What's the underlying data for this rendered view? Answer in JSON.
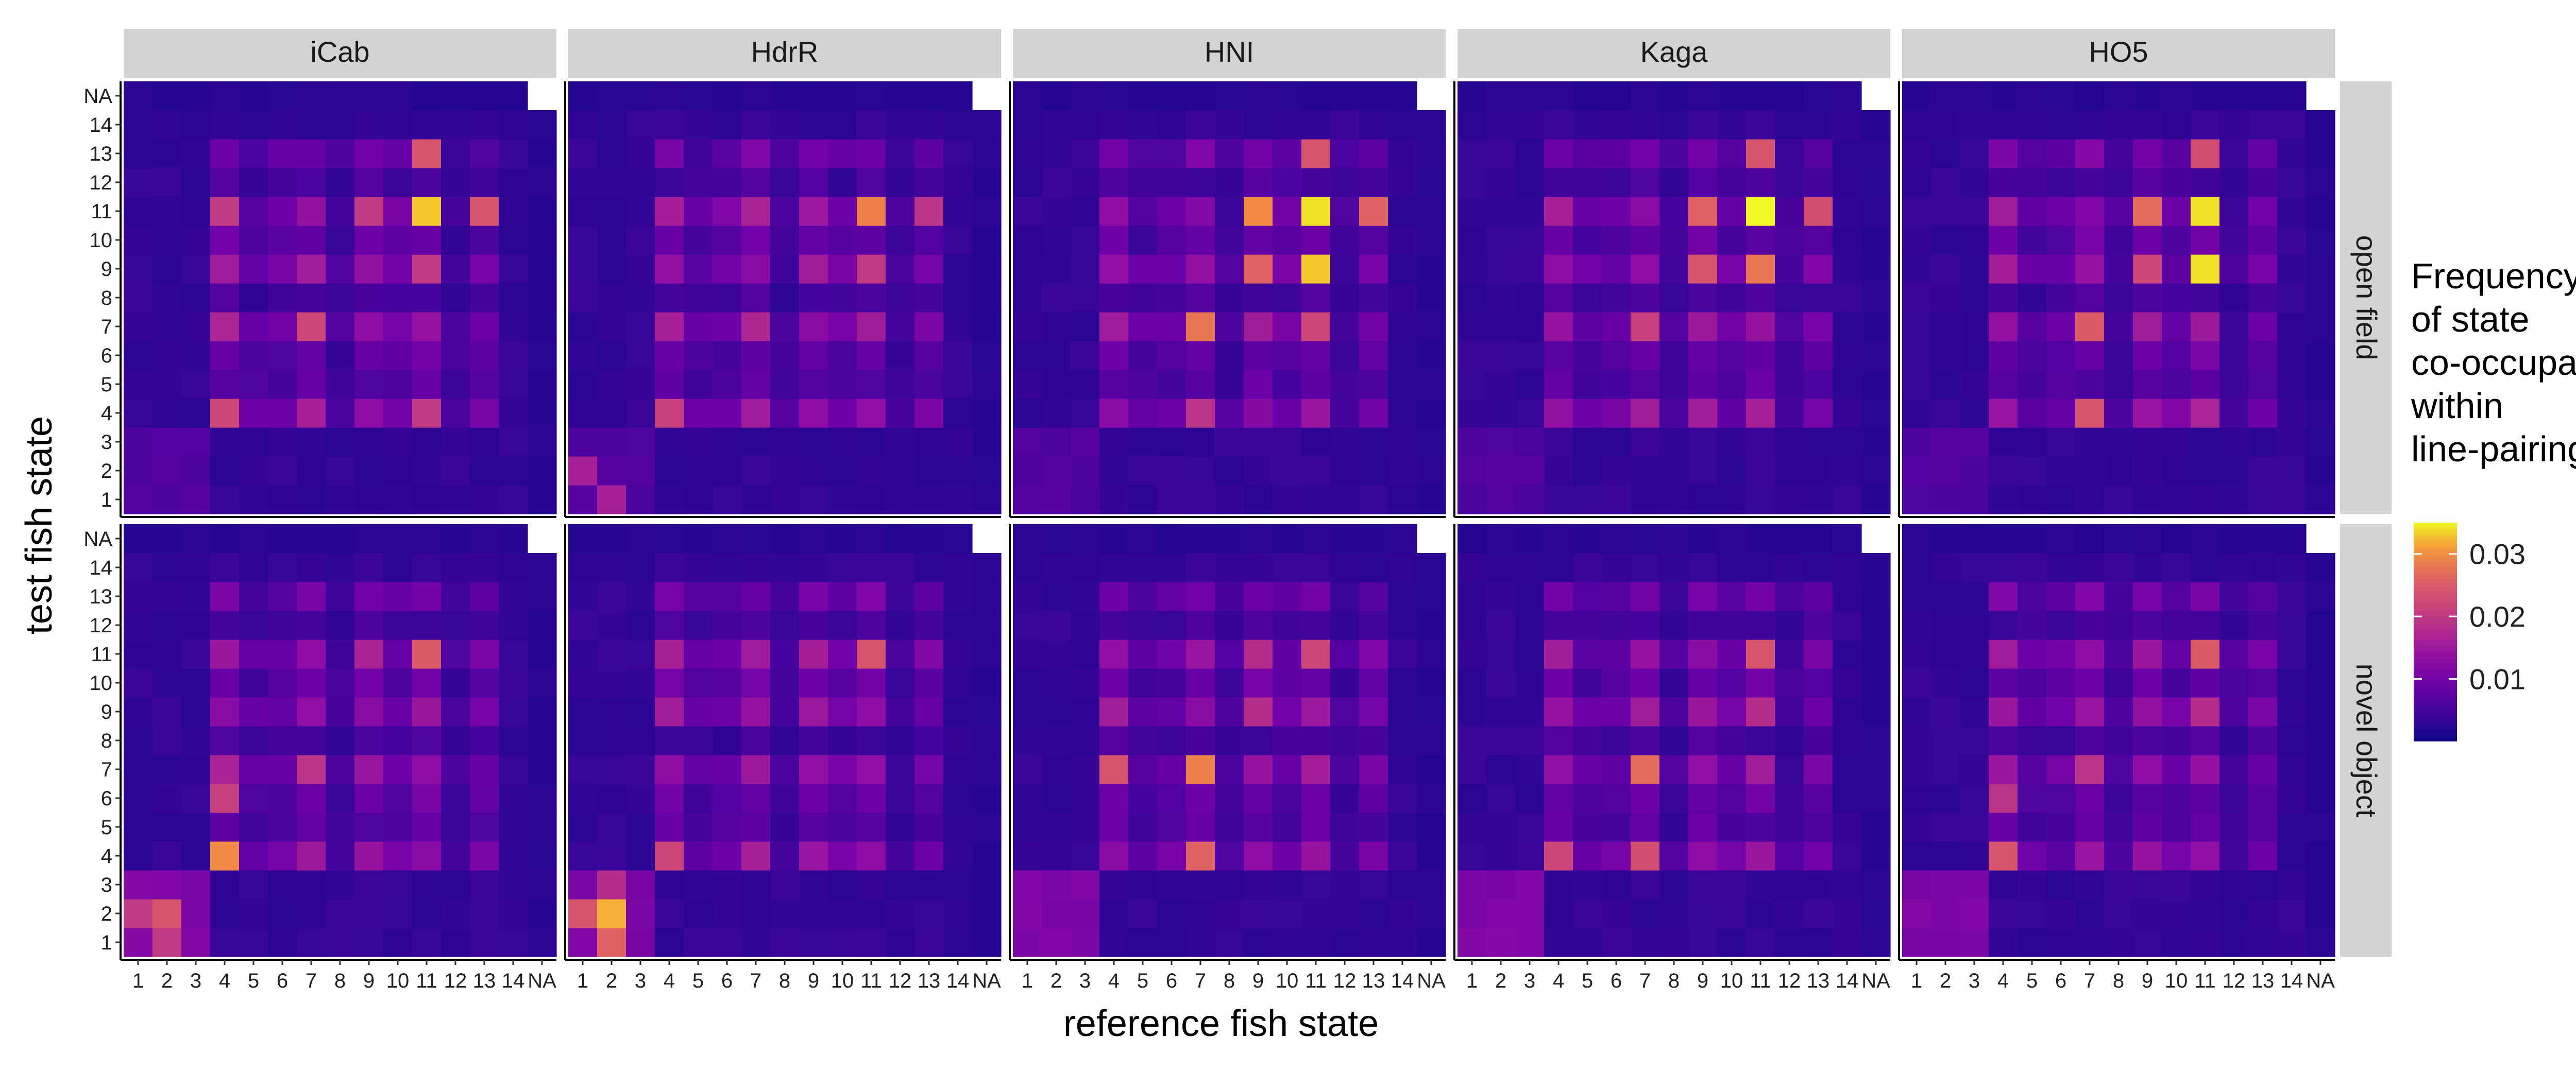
{
  "chart_data": {
    "type": "heatmap",
    "xlabel": "reference fish state",
    "ylabel": "test fish state",
    "x_categories": [
      "1",
      "2",
      "3",
      "4",
      "5",
      "6",
      "7",
      "8",
      "9",
      "10",
      "11",
      "12",
      "13",
      "14",
      "NA"
    ],
    "y_categories": [
      "1",
      "2",
      "3",
      "4",
      "5",
      "6",
      "7",
      "8",
      "9",
      "10",
      "11",
      "12",
      "13",
      "14",
      "NA"
    ],
    "columns": [
      "iCab",
      "HdrR",
      "HNI",
      "Kaga",
      "HO5"
    ],
    "rows": [
      "open field",
      "novel object"
    ],
    "legend": {
      "title_lines": [
        "Frequency",
        "of state",
        "co-occupancy",
        "within",
        "line-pairing"
      ],
      "ticks": [
        "0.01",
        "0.02",
        "0.03"
      ],
      "tick_values": [
        0.01,
        0.02,
        0.03
      ],
      "range": [
        0.0,
        0.035
      ],
      "position": "right"
    },
    "colormap": "plasma",
    "panels": [
      {
        "column": "iCab",
        "row": "open field",
        "peaks": [
          [
            11,
            11,
            0.033
          ],
          [
            11,
            13,
            0.024
          ],
          [
            13,
            11,
            0.024
          ],
          [
            4,
            4,
            0.022
          ],
          [
            7,
            7,
            0.022
          ],
          [
            9,
            11,
            0.02
          ],
          [
            11,
            9,
            0.02
          ],
          [
            4,
            11,
            0.02
          ],
          [
            11,
            4,
            0.02
          ]
        ]
      },
      {
        "column": "HdrR",
        "row": "open field",
        "peaks": [
          [
            11,
            11,
            0.029
          ],
          [
            4,
            4,
            0.021
          ],
          [
            11,
            13,
            0.019
          ],
          [
            9,
            11,
            0.02
          ],
          [
            2,
            1,
            0.016
          ],
          [
            1,
            2,
            0.016
          ],
          [
            7,
            7,
            0.017
          ]
        ]
      },
      {
        "column": "HNI",
        "row": "open field",
        "peaks": [
          [
            11,
            11,
            0.034
          ],
          [
            9,
            11,
            0.033
          ],
          [
            11,
            9,
            0.03
          ],
          [
            7,
            7,
            0.028
          ],
          [
            9,
            9,
            0.026
          ],
          [
            11,
            13,
            0.026
          ],
          [
            13,
            11,
            0.024
          ],
          [
            7,
            11,
            0.022
          ],
          [
            4,
            7,
            0.019
          ]
        ]
      },
      {
        "column": "Kaga",
        "row": "open field",
        "peaks": [
          [
            11,
            11,
            0.035
          ],
          [
            9,
            11,
            0.028
          ],
          [
            11,
            9,
            0.026
          ],
          [
            13,
            11,
            0.024
          ],
          [
            11,
            13,
            0.023
          ],
          [
            9,
            9,
            0.024
          ],
          [
            7,
            7,
            0.021
          ]
        ]
      },
      {
        "column": "HO5",
        "row": "open field",
        "peaks": [
          [
            11,
            11,
            0.034
          ],
          [
            9,
            11,
            0.034
          ],
          [
            11,
            9,
            0.027
          ],
          [
            7,
            7,
            0.025
          ],
          [
            4,
            7,
            0.024
          ],
          [
            13,
            11,
            0.023
          ],
          [
            9,
            9,
            0.022
          ]
        ]
      },
      {
        "column": "iCab",
        "row": "novel object",
        "peaks": [
          [
            4,
            4,
            0.03
          ],
          [
            2,
            2,
            0.024
          ],
          [
            1,
            2,
            0.02
          ],
          [
            2,
            1,
            0.02
          ],
          [
            11,
            11,
            0.025
          ],
          [
            6,
            4,
            0.021
          ],
          [
            7,
            7,
            0.019
          ]
        ]
      },
      {
        "column": "HdrR",
        "row": "novel object",
        "peaks": [
          [
            2,
            2,
            0.032
          ],
          [
            1,
            2,
            0.026
          ],
          [
            2,
            1,
            0.024
          ],
          [
            4,
            4,
            0.022
          ],
          [
            11,
            11,
            0.024
          ],
          [
            3,
            2,
            0.018
          ]
        ]
      },
      {
        "column": "HNI",
        "row": "novel object",
        "peaks": [
          [
            7,
            7,
            0.029
          ],
          [
            4,
            7,
            0.026
          ],
          [
            7,
            4,
            0.024
          ],
          [
            11,
            11,
            0.022
          ],
          [
            9,
            9,
            0.018
          ],
          [
            11,
            9,
            0.018
          ]
        ]
      },
      {
        "column": "Kaga",
        "row": "novel object",
        "peaks": [
          [
            7,
            7,
            0.027
          ],
          [
            4,
            7,
            0.023
          ],
          [
            11,
            11,
            0.024
          ],
          [
            4,
            4,
            0.022
          ],
          [
            9,
            11,
            0.018
          ]
        ]
      },
      {
        "column": "HO5",
        "row": "novel object",
        "peaks": [
          [
            11,
            11,
            0.025
          ],
          [
            4,
            4,
            0.024
          ],
          [
            7,
            7,
            0.019
          ],
          [
            9,
            11,
            0.018
          ],
          [
            6,
            4,
            0.019
          ]
        ]
      }
    ]
  }
}
